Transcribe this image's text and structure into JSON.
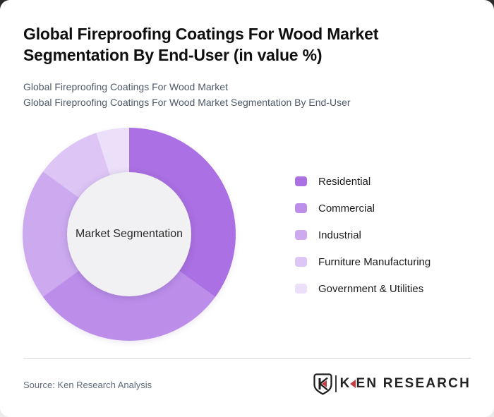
{
  "page": {
    "background_top": "#2b2b2b",
    "background_bottom": "#ececec",
    "card_color": "#ffffff"
  },
  "header": {
    "title": "Global Fireproofing Coatings For Wood Market Segmentation By End-User (in value %)",
    "subtitle_line1": "Global Fireproofing Coatings For Wood Market",
    "subtitle_line2": "Global Fireproofing Coatings For Wood Market Segmentation By End-User"
  },
  "chart_data": {
    "type": "pie",
    "subtype": "donut",
    "title": "Global Fireproofing Coatings For Wood Market Segmentation By End-User (in value %)",
    "center_label": "Market Segmentation",
    "unit": "value %",
    "categories": [
      "Residential",
      "Commercial",
      "Industrial",
      "Furniture Manufacturing",
      "Government & Utilities"
    ],
    "values": [
      35,
      30,
      20,
      10,
      5
    ],
    "colors": [
      "#ab70e3",
      "#bc8eea",
      "#cdaaf0",
      "#ddc5f5",
      "#ecdff9"
    ],
    "start_angle_deg": 0,
    "direction": "clockwise",
    "hole_color": "#f1f0f2",
    "legend_position": "right"
  },
  "footer": {
    "source": "Source: Ken Research Analysis",
    "logo": {
      "badge_letter": "K",
      "brand_first_letter": "K",
      "brand_rest": "EN RESEARCH",
      "accent_color": "#c23b40",
      "text_color": "#222222"
    }
  }
}
